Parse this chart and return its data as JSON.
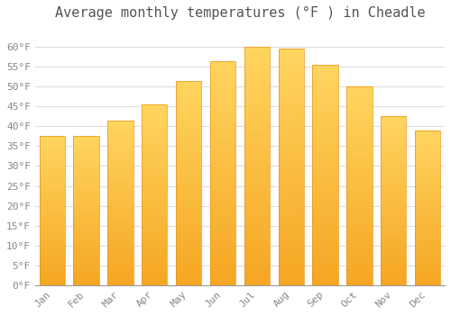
{
  "title": "Average monthly temperatures (°F ) in Cheadle",
  "months": [
    "Jan",
    "Feb",
    "Mar",
    "Apr",
    "May",
    "Jun",
    "Jul",
    "Aug",
    "Sep",
    "Oct",
    "Nov",
    "Dec"
  ],
  "values": [
    37.5,
    37.5,
    41.5,
    45.5,
    51.5,
    56.5,
    60.0,
    59.5,
    55.5,
    50.0,
    42.5,
    39.0
  ],
  "bar_color_bottom": "#F5A623",
  "bar_color_top": "#FFD966",
  "background_color": "#FFFFFF",
  "grid_color": "#DDDDDD",
  "ylim": [
    0,
    65
  ],
  "yticks": [
    0,
    5,
    10,
    15,
    20,
    25,
    30,
    35,
    40,
    45,
    50,
    55,
    60
  ],
  "ytick_labels": [
    "0°F",
    "5°F",
    "10°F",
    "15°F",
    "20°F",
    "25°F",
    "30°F",
    "35°F",
    "40°F",
    "45°F",
    "50°F",
    "55°F",
    "60°F"
  ],
  "title_fontsize": 11,
  "tick_fontsize": 8,
  "font_family": "monospace"
}
